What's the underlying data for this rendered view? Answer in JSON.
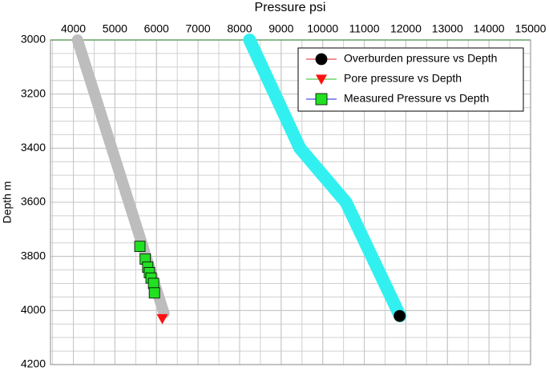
{
  "chart_data": {
    "type": "line",
    "x_label": "Pressure psi",
    "y_label": "Depth m",
    "xlim": [
      3450,
      15000
    ],
    "xticks": [
      4000,
      5000,
      6000,
      7000,
      8000,
      9000,
      10000,
      11000,
      12000,
      13000,
      14000,
      15000
    ],
    "ylim": [
      3000,
      4200
    ],
    "yticks": [
      3000,
      3200,
      3400,
      3600,
      3800,
      4000,
      4200
    ],
    "y_inverted": true,
    "x_axis_position": "top",
    "grid": true,
    "x_minor_step": 500,
    "y_minor_step": 50,
    "legend_position": "upper right",
    "series": [
      {
        "name": "Overburden pressure vs Depth",
        "color": "#33f0f0",
        "line_width": 16,
        "legend_line_color": "#e02020",
        "marker": "circle",
        "marker_color": "#000000",
        "x": [
          8240,
          9450,
          10560,
          11860
        ],
        "y": [
          3000,
          3400,
          3600,
          4020
        ],
        "marker_x": [
          11850
        ],
        "marker_y": [
          4020
        ]
      },
      {
        "name": "Pore pressure vs Depth",
        "color": "#bdbdbd",
        "line_width": 14,
        "legend_line_color": "#20c020",
        "marker": "triangle",
        "marker_color": "#ff1010",
        "x": [
          4100,
          6180
        ],
        "y": [
          3000,
          4010
        ],
        "marker_x": [
          6140
        ],
        "marker_y": [
          4030
        ]
      },
      {
        "name": "Measured Pressure vs Depth",
        "color": null,
        "line_width": 0,
        "legend_line_color": "#2020e0",
        "marker": "square",
        "marker_color": "#22e022",
        "x": [],
        "y": [],
        "marker_x": [
          5600,
          5730,
          5790,
          5830,
          5870,
          5930,
          5950
        ],
        "marker_y": [
          3763,
          3810,
          3840,
          3860,
          3880,
          3900,
          3935
        ]
      }
    ]
  }
}
